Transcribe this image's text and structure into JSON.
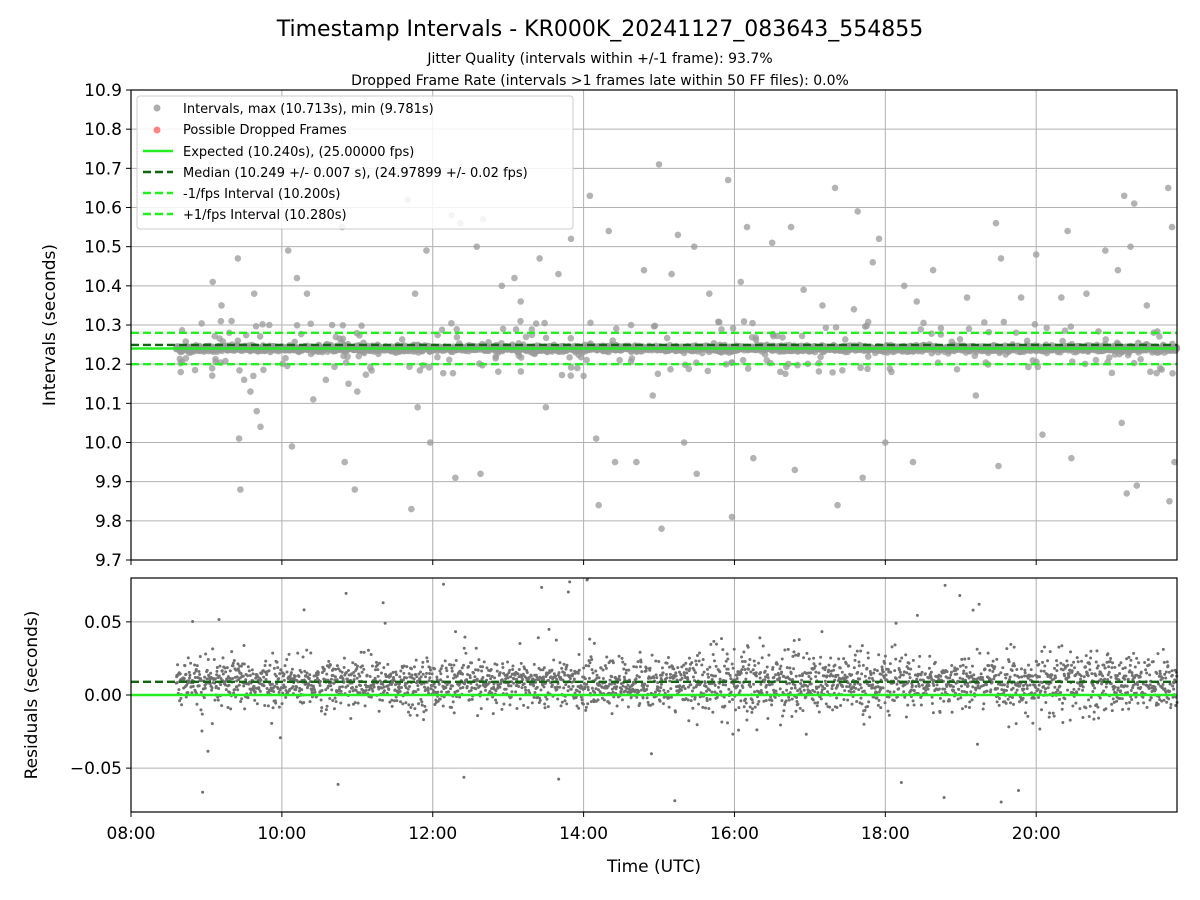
{
  "figure": {
    "title": "Timestamp Intervals - KR000K_20241127_083643_554855",
    "subtitle_1": "Jitter Quality (intervals within +/-1 frame): 93.7%",
    "subtitle_2": "Dropped Frame Rate (intervals >1 frames late within 50 FF files): 0.0%"
  },
  "colors": {
    "intervals": "#999999",
    "dropped": "#ff6666",
    "expected": "#22ee22",
    "median": "#116611",
    "fps_interval": "#22ee22",
    "residuals": "#707070",
    "grid": "#b0b0b0"
  },
  "chart_data": [
    {
      "type": "scatter",
      "panel": "intervals",
      "ylabel": "Intervals (seconds)",
      "xlim": [
        "08:00",
        "21:52"
      ],
      "ylim": [
        9.7,
        10.9
      ],
      "yticks": [
        "9.7",
        "9.8",
        "9.9",
        "10.0",
        "10.1",
        "10.2",
        "10.3",
        "10.4",
        "10.5",
        "10.6",
        "10.7",
        "10.8",
        "10.9"
      ],
      "grid": true,
      "legend_position": "upper-left",
      "series": [
        {
          "name": "Intervals, max (10.713s), min (9.781s)",
          "kind": "scatter",
          "x_range": [
            "08:36",
            "21:52"
          ],
          "core_value": 10.24,
          "max": 10.713,
          "min": 9.781,
          "outliers": [
            {
              "x": "09:05",
              "y": 10.41
            },
            {
              "x": "09:12",
              "y": 10.35
            },
            {
              "x": "09:20",
              "y": 10.31
            },
            {
              "x": "09:25",
              "y": 10.26
            },
            {
              "x": "09:30",
              "y": 10.16
            },
            {
              "x": "09:25",
              "y": 10.47
            },
            {
              "x": "09:38",
              "y": 10.38
            },
            {
              "x": "09:40",
              "y": 10.08
            },
            {
              "x": "09:43",
              "y": 10.04
            },
            {
              "x": "09:26",
              "y": 10.01
            },
            {
              "x": "09:27",
              "y": 9.88
            },
            {
              "x": "09:35",
              "y": 10.13
            },
            {
              "x": "09:50",
              "y": 10.3
            },
            {
              "x": "10:05",
              "y": 10.49
            },
            {
              "x": "10:08",
              "y": 9.99
            },
            {
              "x": "10:12",
              "y": 10.42
            },
            {
              "x": "10:20",
              "y": 10.38
            },
            {
              "x": "10:25",
              "y": 10.11
            },
            {
              "x": "10:35",
              "y": 10.16
            },
            {
              "x": "10:40",
              "y": 10.3
            },
            {
              "x": "10:48",
              "y": 10.55
            },
            {
              "x": "10:50",
              "y": 9.95
            },
            {
              "x": "10:53",
              "y": 10.15
            },
            {
              "x": "10:58",
              "y": 9.88
            },
            {
              "x": "11:00",
              "y": 10.13
            },
            {
              "x": "11:40",
              "y": 10.62
            },
            {
              "x": "11:43",
              "y": 9.83
            },
            {
              "x": "11:46",
              "y": 10.38
            },
            {
              "x": "11:48",
              "y": 10.09
            },
            {
              "x": "11:55",
              "y": 10.49
            },
            {
              "x": "11:58",
              "y": 10.0
            },
            {
              "x": "12:15",
              "y": 10.58
            },
            {
              "x": "12:18",
              "y": 9.91
            },
            {
              "x": "12:22",
              "y": 10.56
            },
            {
              "x": "12:35",
              "y": 10.5
            },
            {
              "x": "12:38",
              "y": 9.92
            },
            {
              "x": "12:40",
              "y": 10.57
            },
            {
              "x": "12:55",
              "y": 10.4
            },
            {
              "x": "13:05",
              "y": 10.42
            },
            {
              "x": "13:10",
              "y": 10.36
            },
            {
              "x": "13:25",
              "y": 10.47
            },
            {
              "x": "13:30",
              "y": 10.09
            },
            {
              "x": "13:40",
              "y": 10.43
            },
            {
              "x": "13:50",
              "y": 10.52
            },
            {
              "x": "13:55",
              "y": 10.19
            },
            {
              "x": "14:00",
              "y": 10.17
            },
            {
              "x": "14:05",
              "y": 10.63
            },
            {
              "x": "14:10",
              "y": 10.01
            },
            {
              "x": "14:12",
              "y": 9.84
            },
            {
              "x": "14:20",
              "y": 10.54
            },
            {
              "x": "14:25",
              "y": 9.95
            },
            {
              "x": "14:42",
              "y": 9.95
            },
            {
              "x": "14:48",
              "y": 10.44
            },
            {
              "x": "14:55",
              "y": 10.12
            },
            {
              "x": "15:00",
              "y": 10.71
            },
            {
              "x": "15:02",
              "y": 9.78
            },
            {
              "x": "15:10",
              "y": 10.43
            },
            {
              "x": "15:15",
              "y": 10.53
            },
            {
              "x": "15:20",
              "y": 10.0
            },
            {
              "x": "15:28",
              "y": 10.5
            },
            {
              "x": "15:30",
              "y": 9.92
            },
            {
              "x": "15:40",
              "y": 10.38
            },
            {
              "x": "15:55",
              "y": 10.67
            },
            {
              "x": "15:58",
              "y": 9.81
            },
            {
              "x": "16:05",
              "y": 10.41
            },
            {
              "x": "16:10",
              "y": 10.55
            },
            {
              "x": "16:15",
              "y": 9.96
            },
            {
              "x": "16:30",
              "y": 10.51
            },
            {
              "x": "16:45",
              "y": 10.55
            },
            {
              "x": "16:48",
              "y": 9.93
            },
            {
              "x": "16:55",
              "y": 10.39
            },
            {
              "x": "17:10",
              "y": 10.35
            },
            {
              "x": "17:20",
              "y": 10.65
            },
            {
              "x": "17:22",
              "y": 9.84
            },
            {
              "x": "17:35",
              "y": 10.34
            },
            {
              "x": "17:38",
              "y": 10.59
            },
            {
              "x": "17:42",
              "y": 9.91
            },
            {
              "x": "17:50",
              "y": 10.46
            },
            {
              "x": "17:55",
              "y": 10.52
            },
            {
              "x": "18:00",
              "y": 10.0
            },
            {
              "x": "18:15",
              "y": 10.4
            },
            {
              "x": "18:22",
              "y": 9.95
            },
            {
              "x": "18:25",
              "y": 10.36
            },
            {
              "x": "18:38",
              "y": 10.44
            },
            {
              "x": "19:05",
              "y": 10.37
            },
            {
              "x": "19:12",
              "y": 10.12
            },
            {
              "x": "19:28",
              "y": 10.56
            },
            {
              "x": "19:30",
              "y": 9.94
            },
            {
              "x": "19:32",
              "y": 10.47
            },
            {
              "x": "19:48",
              "y": 10.37
            },
            {
              "x": "20:00",
              "y": 10.48
            },
            {
              "x": "20:05",
              "y": 10.02
            },
            {
              "x": "20:20",
              "y": 10.37
            },
            {
              "x": "20:25",
              "y": 10.54
            },
            {
              "x": "20:28",
              "y": 9.96
            },
            {
              "x": "20:40",
              "y": 10.38
            },
            {
              "x": "20:55",
              "y": 10.49
            },
            {
              "x": "21:05",
              "y": 10.44
            },
            {
              "x": "21:08",
              "y": 10.05
            },
            {
              "x": "21:10",
              "y": 10.63
            },
            {
              "x": "21:12",
              "y": 9.87
            },
            {
              "x": "21:15",
              "y": 10.5
            },
            {
              "x": "21:18",
              "y": 10.61
            },
            {
              "x": "21:20",
              "y": 9.89
            },
            {
              "x": "21:28",
              "y": 10.35
            },
            {
              "x": "21:45",
              "y": 10.65
            },
            {
              "x": "21:46",
              "y": 9.85
            },
            {
              "x": "21:48",
              "y": 10.55
            },
            {
              "x": "21:50",
              "y": 9.95
            }
          ]
        },
        {
          "name": "Possible Dropped Frames",
          "kind": "scatter",
          "points": []
        },
        {
          "name": "Expected (10.240s), (25.00000 fps)",
          "kind": "hline",
          "y": 10.24,
          "style": "solid"
        },
        {
          "name": "Median (10.249 +/- 0.007 s), (24.97899 +/- 0.02 fps)",
          "kind": "hline",
          "y": 10.249,
          "style": "dashed"
        },
        {
          "name": "-1/fps Interval (10.200s)",
          "kind": "hline",
          "y": 10.2,
          "style": "dashed"
        },
        {
          "name": "+1/fps Interval (10.280s)",
          "kind": "hline",
          "y": 10.28,
          "style": "dashed"
        }
      ]
    },
    {
      "type": "scatter",
      "panel": "residuals",
      "xlabel": "Time (UTC)",
      "ylabel": "Residuals (seconds)",
      "xlim": [
        "08:00",
        "21:52"
      ],
      "xticks": [
        "08:00",
        "10:00",
        "12:00",
        "14:00",
        "16:00",
        "18:00",
        "20:00"
      ],
      "ylim": [
        -0.08,
        0.08
      ],
      "yticks": [
        "−0.05",
        "0.00",
        "0.05"
      ],
      "grid": true,
      "series": [
        {
          "kind": "scatter",
          "x_range": [
            "08:36",
            "21:52"
          ],
          "core_value": 0.008,
          "spread": 0.015
        },
        {
          "kind": "hline",
          "y": 0.0,
          "style": "solid"
        },
        {
          "kind": "hline",
          "y": 0.009,
          "style": "dashed"
        }
      ]
    }
  ]
}
